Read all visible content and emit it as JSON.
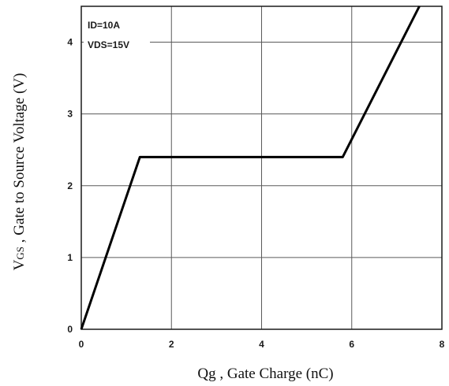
{
  "chart_data": {
    "type": "line",
    "xlabel": "Qg , Gate Charge (nC)",
    "ylabel": {
      "prefix": "V",
      "subscript": "GS",
      "rest": " , Gate to Source Voltage (V)"
    },
    "xlim": [
      0,
      8
    ],
    "ylim": [
      0,
      4.5
    ],
    "xticks": [
      0,
      2,
      4,
      6,
      8
    ],
    "yticks": [
      0,
      1,
      2,
      3,
      4
    ],
    "grid": true,
    "annotations": [
      "ID=10A",
      "VDS=15V"
    ],
    "series": [
      {
        "x": [
          0,
          1.3,
          5.8,
          7.5
        ],
        "y": [
          0,
          2.4,
          2.4,
          4.5
        ]
      }
    ],
    "colors": {
      "line": "#000000",
      "grid": "#5a5a5a",
      "frame": "#1a1a1a"
    }
  }
}
